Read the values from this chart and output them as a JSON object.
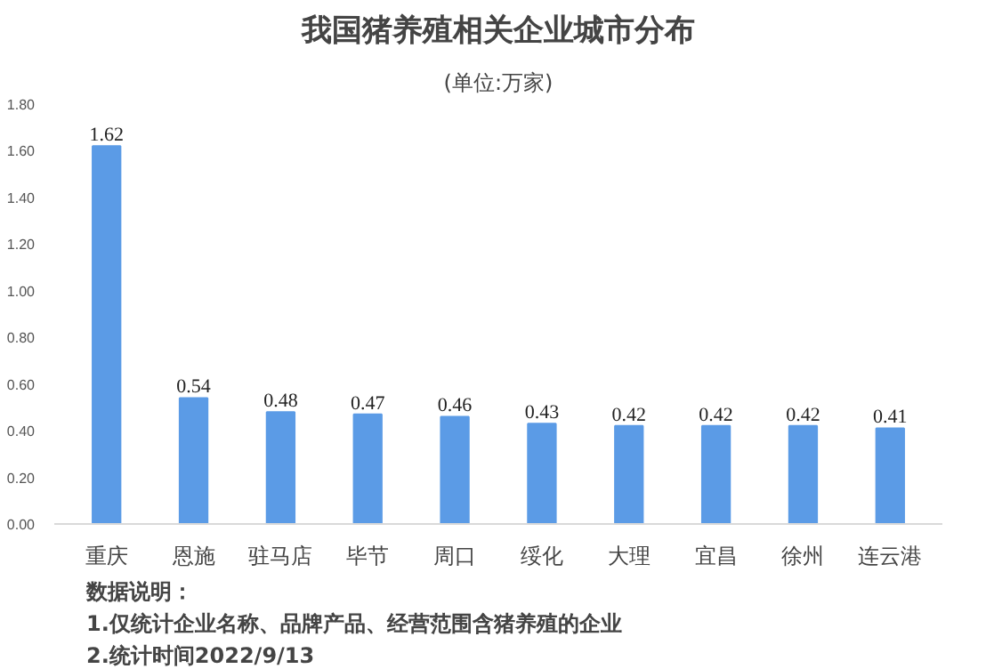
{
  "chart_data": {
    "type": "bar",
    "title": "我国猪养殖相关企业城市分布",
    "subtitle": "(单位:万家)",
    "categories": [
      "重庆",
      "恩施",
      "驻马店",
      "毕节",
      "周口",
      "绥化",
      "大理",
      "宜昌",
      "徐州",
      "连云港"
    ],
    "values": [
      1.62,
      0.54,
      0.48,
      0.47,
      0.46,
      0.43,
      0.42,
      0.42,
      0.42,
      0.41
    ],
    "color": "#5b9be6",
    "data_labels": true,
    "grid": false,
    "ylim": [
      0,
      1.8
    ],
    "yticks": [
      {
        "value": 0,
        "label": "0.00"
      },
      {
        "value": 0.2,
        "label": "0.20"
      },
      {
        "value": 0.4,
        "label": "0.40"
      },
      {
        "value": 0.6,
        "label": "0.60"
      },
      {
        "value": 0.8,
        "label": "0.80"
      },
      {
        "value": 1.0,
        "label": "1.00"
      },
      {
        "value": 1.2,
        "label": "1.20"
      },
      {
        "value": 1.4,
        "label": "1.40"
      },
      {
        "value": 1.6,
        "label": "1.60"
      },
      {
        "value": 1.8,
        "label": "1.80"
      }
    ],
    "annotations": [
      "数据说明：",
      "1.仅统计企业名称、品牌产品、经营范围含猪养殖的企业",
      "2.统计时间2022/9/13"
    ]
  }
}
